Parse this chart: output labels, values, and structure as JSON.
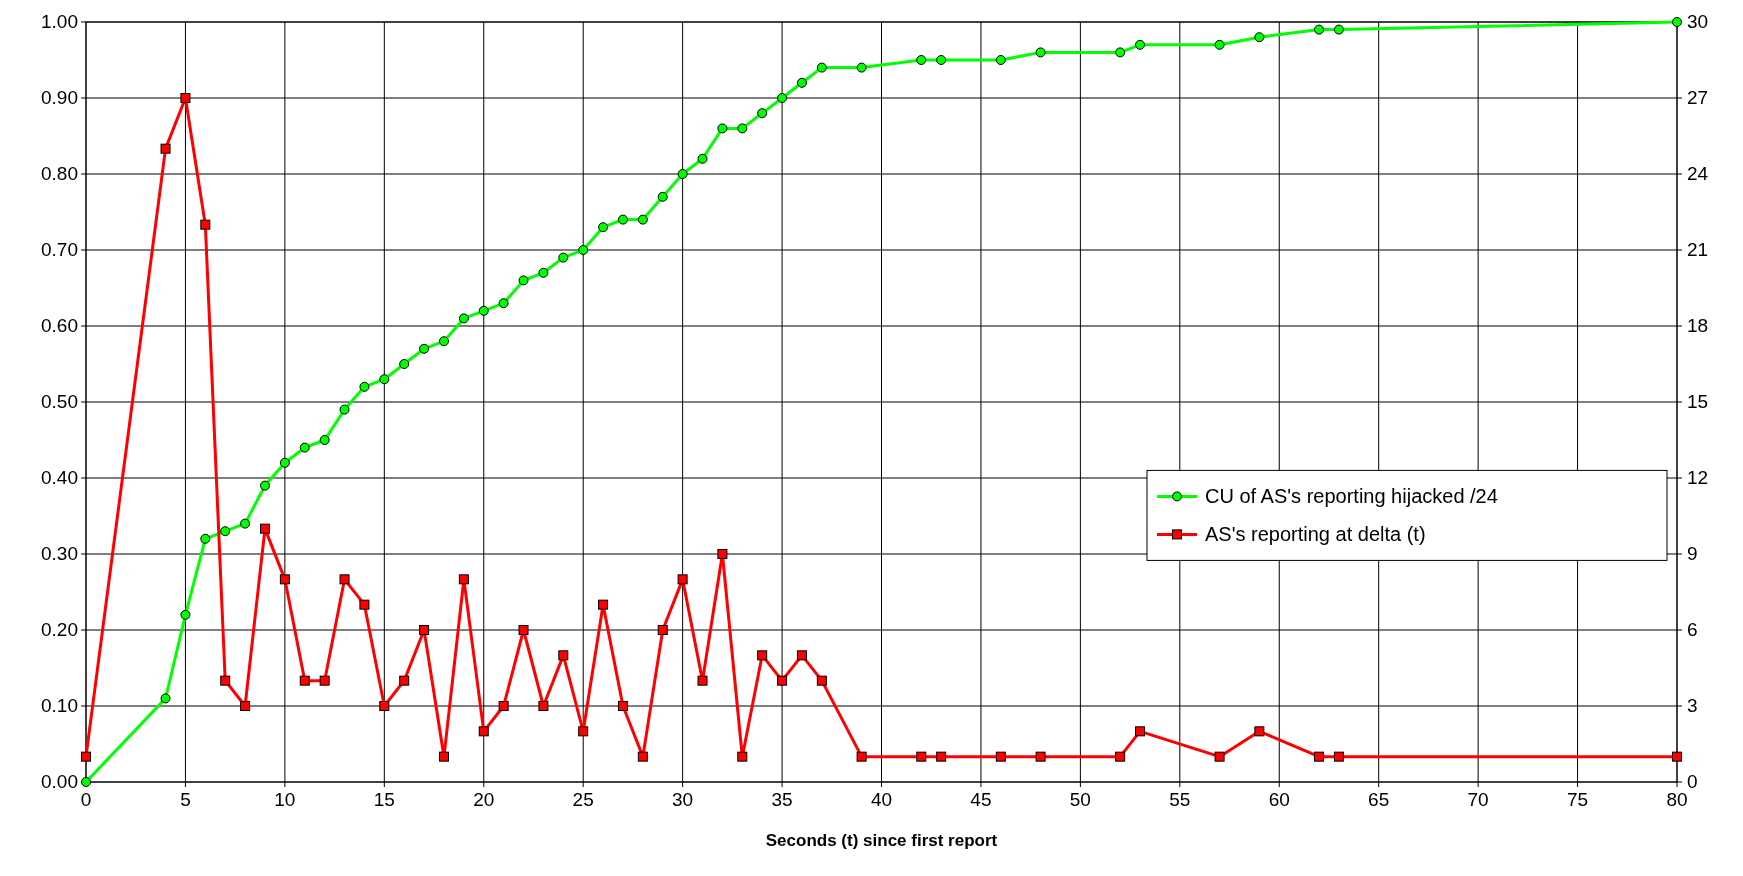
{
  "chart_data": {
    "type": "line",
    "xlabel": "Seconds (t) since first report",
    "xlim": [
      0,
      80
    ],
    "xticks": [
      0,
      5,
      10,
      15,
      20,
      25,
      30,
      35,
      40,
      45,
      50,
      55,
      60,
      65,
      70,
      75,
      80
    ],
    "ylim": [
      0,
      1
    ],
    "yticks": [
      {
        "value": 0,
        "label": "0.00"
      },
      {
        "value": 0.1,
        "label": "0.10"
      },
      {
        "value": 0.2,
        "label": "0.20"
      },
      {
        "value": 0.3,
        "label": "0.30"
      },
      {
        "value": 0.4,
        "label": "0.40"
      },
      {
        "value": 0.5,
        "label": "0.50"
      },
      {
        "value": 0.6,
        "label": "0.60"
      },
      {
        "value": 0.7,
        "label": "0.70"
      },
      {
        "value": 0.8,
        "label": "0.80"
      },
      {
        "value": 0.9,
        "label": "0.90"
      },
      {
        "value": 1,
        "label": "1.00"
      }
    ],
    "y2lim": [
      0,
      30
    ],
    "y2ticks": [
      0,
      3,
      6,
      9,
      12,
      15,
      18,
      21,
      24,
      27,
      30
    ],
    "grid": true,
    "legend": "right",
    "series": [
      {
        "name": "CU of AS's reporting hijacked /24",
        "color": "#00ff00",
        "marker": "circle",
        "x": [
          0,
          4,
          5,
          6,
          7,
          8,
          9,
          10,
          11,
          12,
          13,
          14,
          15,
          16,
          17,
          18,
          19,
          20,
          21,
          22,
          23,
          24,
          25,
          26,
          27,
          28,
          29,
          30,
          31,
          32,
          33,
          34,
          35,
          36,
          37,
          39,
          42,
          43,
          46,
          48,
          52,
          53,
          57,
          59,
          62,
          63,
          80
        ],
        "values": [
          0,
          0.11,
          0.22,
          0.32,
          0.33,
          0.34,
          0.39,
          0.42,
          0.44,
          0.45,
          0.49,
          0.52,
          0.53,
          0.55,
          0.57,
          0.58,
          0.61,
          0.62,
          0.63,
          0.66,
          0.67,
          0.69,
          0.7,
          0.73,
          0.74,
          0.74,
          0.77,
          0.8,
          0.82,
          0.86,
          0.86,
          0.88,
          0.9,
          0.92,
          0.94,
          0.94,
          0.95,
          0.95,
          0.95,
          0.96,
          0.96,
          0.97,
          0.97,
          0.98,
          0.99,
          0.99,
          1
        ]
      },
      {
        "name": "AS's reporting at delta (t)",
        "color": "#ff0000",
        "marker": "square",
        "axis": "y2",
        "x": [
          0,
          4,
          5,
          6,
          7,
          8,
          9,
          10,
          11,
          12,
          13,
          14,
          15,
          16,
          17,
          18,
          19,
          20,
          21,
          22,
          23,
          24,
          25,
          26,
          27,
          28,
          29,
          30,
          31,
          32,
          33,
          34,
          35,
          36,
          37,
          39,
          42,
          43,
          46,
          48,
          52,
          53,
          57,
          59,
          62,
          63,
          80
        ],
        "values": [
          1,
          25,
          27,
          22,
          4,
          3,
          10,
          8,
          4,
          4,
          8,
          7,
          3,
          4,
          6,
          1,
          8,
          2,
          3,
          6,
          3,
          5,
          2,
          7,
          3,
          1,
          6,
          8,
          4,
          9,
          1,
          5,
          4,
          5,
          4,
          1,
          1,
          1,
          1,
          1,
          1,
          2,
          1,
          2,
          1,
          1,
          1
        ]
      }
    ]
  }
}
